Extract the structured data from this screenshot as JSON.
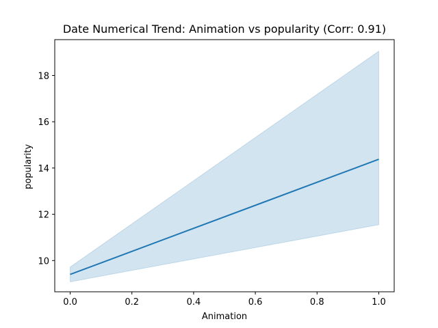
{
  "chart_data": {
    "type": "line",
    "title": "Date Numerical Trend: Animation vs popularity (Corr: 0.91)",
    "xlabel": "Animation",
    "ylabel": "popularity",
    "x": [
      0.0,
      1.0
    ],
    "series": [
      {
        "values": [
          9.4,
          14.38
        ],
        "ci_lower": [
          9.08,
          11.55
        ],
        "ci_upper": [
          9.72,
          19.05
        ]
      }
    ],
    "xlim": [
      -0.05,
      1.05
    ],
    "ylim": [
      8.65,
      19.55
    ],
    "xticks": [
      0.0,
      0.2,
      0.4,
      0.6,
      0.8,
      1.0
    ],
    "xtick_labels": [
      "0.0",
      "0.2",
      "0.4",
      "0.6",
      "0.8",
      "1.0"
    ],
    "yticks": [
      10,
      12,
      14,
      16,
      18
    ],
    "ytick_labels": [
      "10",
      "12",
      "14",
      "16",
      "18"
    ],
    "grid": false,
    "colors": {
      "line": "#1f77b4",
      "band": "#1f77b4"
    }
  }
}
